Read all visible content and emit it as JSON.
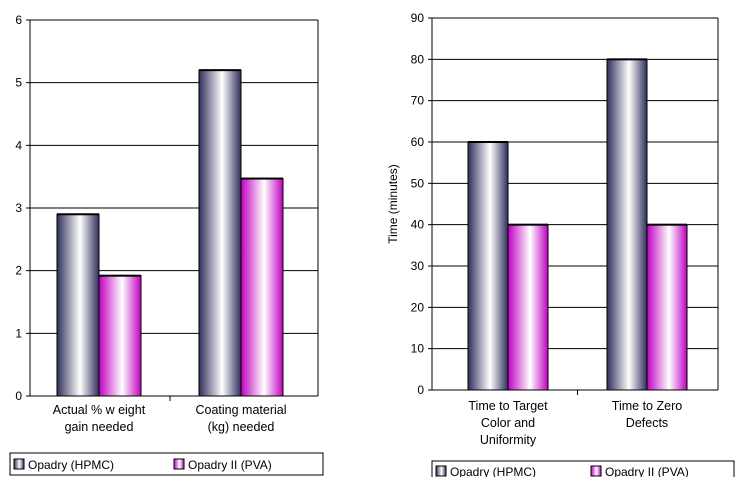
{
  "colors": {
    "hpmc_dark": "#2e2e5c",
    "hpmc_light": "#ffffff",
    "pva_dark": "#c000c0",
    "pva_light": "#ffffff",
    "grid": "#000000"
  },
  "chart_data": [
    {
      "type": "bar",
      "title": "",
      "xlabel": "",
      "ylabel": "",
      "ylim": [
        0,
        6
      ],
      "yticks": [
        "0",
        "1",
        "2",
        "3",
        "4",
        "5",
        "6"
      ],
      "grid": true,
      "legend": "bottom",
      "categories": [
        [
          "Actual % w eight",
          "gain needed"
        ],
        [
          "Coating material",
          "(kg) needed"
        ]
      ],
      "series": [
        {
          "name": "Opadry (HPMC)",
          "values": [
            2.9,
            5.2
          ]
        },
        {
          "name": "Opadry II (PVA)",
          "values": [
            1.92,
            3.47
          ]
        }
      ]
    },
    {
      "type": "bar",
      "title": "",
      "xlabel": "",
      "ylabel": "Time (minutes)",
      "ylim": [
        0,
        90
      ],
      "yticks": [
        "0",
        "10",
        "20",
        "30",
        "40",
        "50",
        "60",
        "70",
        "80",
        "90"
      ],
      "grid": true,
      "legend": "bottom",
      "categories": [
        [
          "Time to Target",
          "Color and",
          "Uniformity"
        ],
        [
          "Time to Zero",
          "Defects"
        ]
      ],
      "series": [
        {
          "name": "Opadry (HPMC)",
          "values": [
            60,
            80
          ]
        },
        {
          "name": "Opadry II (PVA)",
          "values": [
            40,
            40
          ]
        }
      ]
    }
  ]
}
